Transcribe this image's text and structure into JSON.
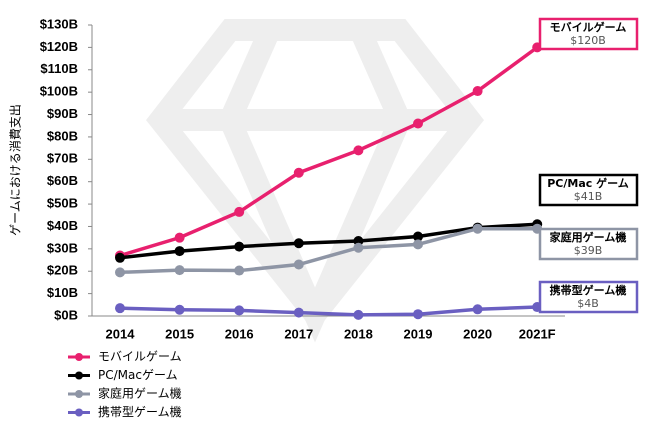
{
  "chart_data": {
    "type": "line",
    "y_label": "ゲームにおける消費支出",
    "categories": [
      "2014",
      "2015",
      "2016",
      "2017",
      "2018",
      "2019",
      "2020",
      "2021F"
    ],
    "ylim": [
      0,
      130
    ],
    "yticks": [
      {
        "value": 0,
        "label": "$0B"
      },
      {
        "value": 10,
        "label": "$10B"
      },
      {
        "value": 20,
        "label": "$20B"
      },
      {
        "value": 30,
        "label": "$30B"
      },
      {
        "value": 40,
        "label": "$40B"
      },
      {
        "value": 50,
        "label": "$50B"
      },
      {
        "value": 60,
        "label": "$60B"
      },
      {
        "value": 70,
        "label": "$70B"
      },
      {
        "value": 80,
        "label": "$80B"
      },
      {
        "value": 90,
        "label": "$90B"
      },
      {
        "value": 100,
        "label": "$100B"
      },
      {
        "value": 110,
        "label": "$110B"
      },
      {
        "value": 120,
        "label": "$120B"
      },
      {
        "value": 130,
        "label": "$130B"
      }
    ],
    "series": [
      {
        "name": "モバイルゲーム",
        "callout": "モバイルゲーム",
        "color": "#e8206e",
        "values": [
          27,
          35,
          46.5,
          64,
          74,
          86,
          100.5,
          120
        ],
        "value_labels": [
          null,
          null,
          null,
          null,
          null,
          null,
          null,
          "$120B"
        ]
      },
      {
        "name": "PC/Macゲーム",
        "callout": "PC/Mac ゲーム",
        "color": "#000000",
        "values": [
          26,
          29,
          31,
          32.5,
          33.5,
          35.5,
          39.5,
          41
        ],
        "value_labels": [
          null,
          null,
          null,
          null,
          null,
          null,
          null,
          "$41B"
        ]
      },
      {
        "name": "家庭用ゲーム機",
        "callout": "家庭用ゲーム機",
        "color": "#8e95a5",
        "values": [
          19.5,
          20.5,
          20.3,
          23,
          30.5,
          32,
          39,
          39
        ],
        "value_labels": [
          null,
          null,
          null,
          null,
          null,
          null,
          null,
          "$39B"
        ]
      },
      {
        "name": "携帯型ゲーム機",
        "callout": "携帯型ゲーム機",
        "color": "#6a5fc1",
        "values": [
          3.5,
          2.8,
          2.5,
          1.5,
          0.5,
          0.8,
          3,
          4
        ],
        "value_labels": [
          null,
          null,
          null,
          null,
          null,
          null,
          null,
          "$4B"
        ]
      }
    ]
  }
}
